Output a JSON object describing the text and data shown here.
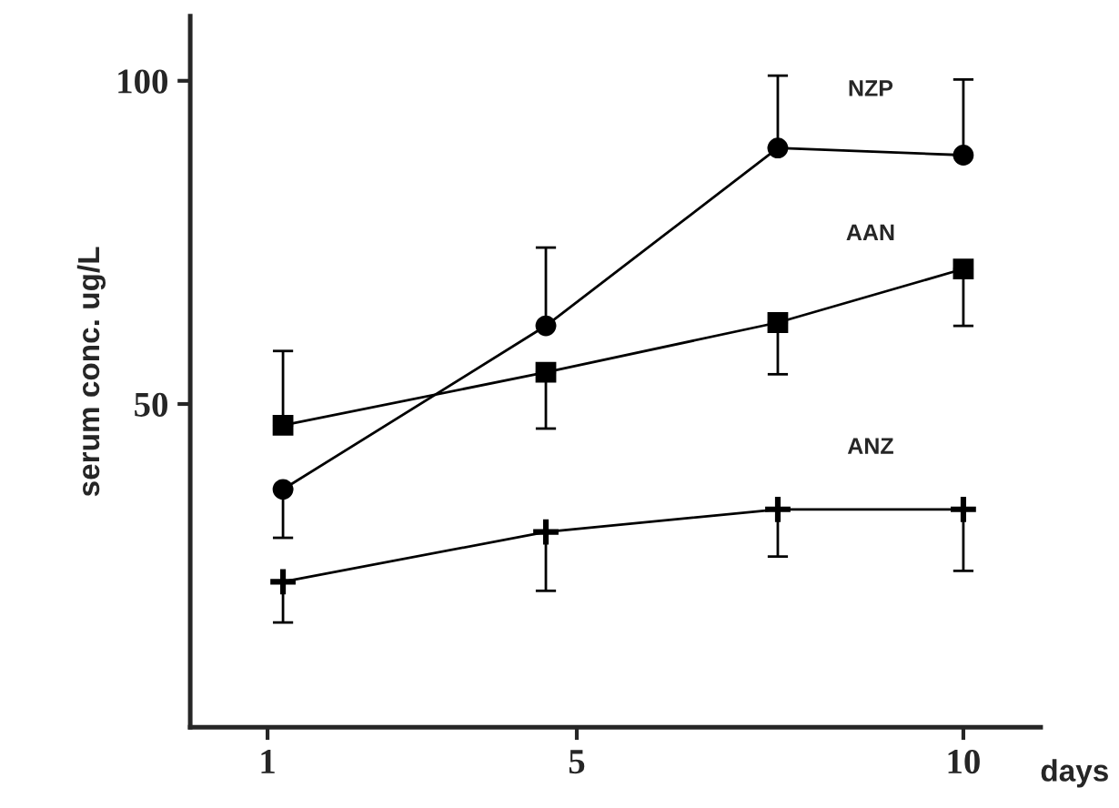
{
  "chart_data": {
    "type": "line",
    "xlabel": "days",
    "ylabel": "serum conc. ug/L",
    "x": [
      1.2,
      4.6,
      7.6,
      10.0
    ],
    "series": [
      {
        "name": "NZP",
        "color": "#000000",
        "marker": "circle",
        "values": [
          36.8,
          62.1,
          89.6,
          88.5
        ],
        "errors": [
          [
            29.3,
            36.8
          ],
          [
            62.1,
            74.2
          ],
          [
            89.6,
            100.8
          ],
          [
            88.5,
            100.2
          ]
        ]
      },
      {
        "name": "AAN",
        "color": "#000000",
        "marker": "square",
        "values": [
          46.7,
          54.9,
          62.6,
          70.9
        ],
        "errors": [
          [
            46.7,
            58.2
          ],
          [
            46.2,
            54.9
          ],
          [
            54.6,
            62.6
          ],
          [
            62.1,
            70.9
          ]
        ]
      },
      {
        "name": "ANZ",
        "color": "#000000",
        "marker": "cross",
        "values": [
          22.5,
          30.2,
          33.7,
          33.7
        ],
        "errors": [
          [
            16.2,
            22.5
          ],
          [
            21.1,
            30.2
          ],
          [
            26.4,
            33.7
          ],
          [
            24.2,
            33.7
          ]
        ]
      }
    ],
    "xlim": [
      0,
      11
    ],
    "ylim": [
      0,
      110
    ],
    "xticks": [
      1,
      5,
      10
    ],
    "yticks": [
      50,
      100
    ],
    "grid": false,
    "legend": false
  }
}
